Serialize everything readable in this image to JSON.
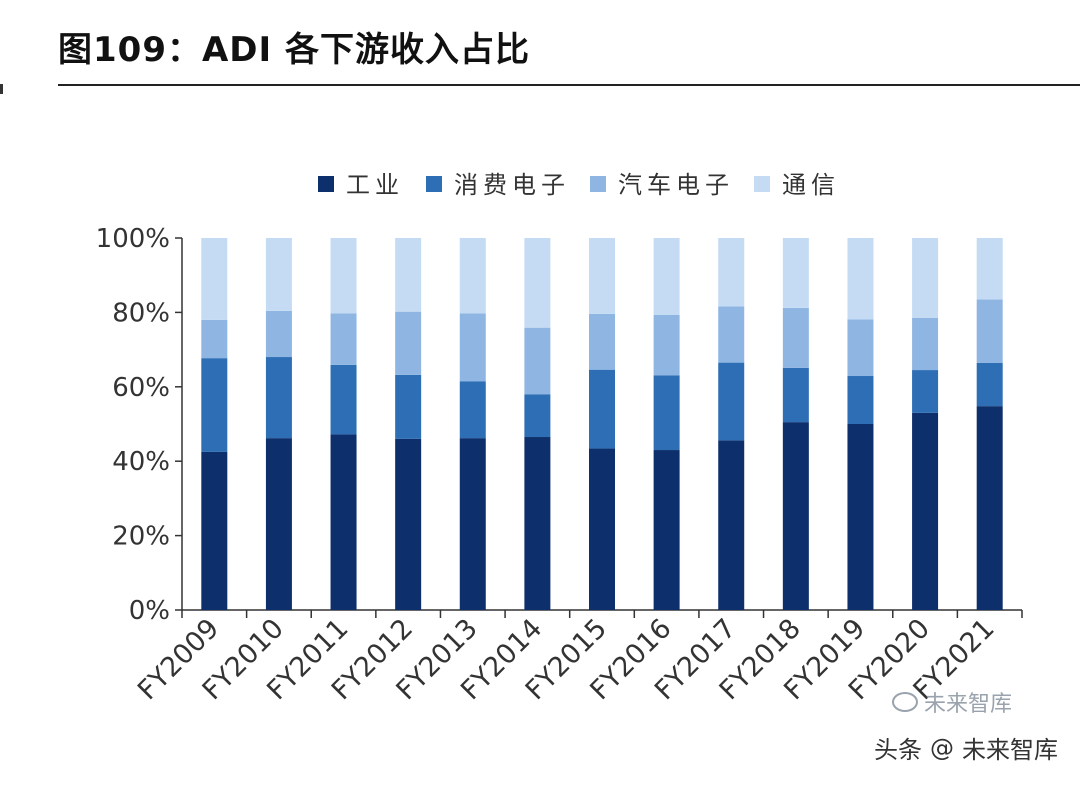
{
  "figure": {
    "title": "图109：ADI 各下游收入占比"
  },
  "watermark": {
    "platform": "头条",
    "at_symbol": "@",
    "account": "未来智库"
  },
  "source_mark": {
    "text": "未来智库"
  },
  "chart_data": {
    "type": "bar",
    "stacked": true,
    "categories": [
      "FY2009",
      "FY2010",
      "FY2011",
      "FY2012",
      "FY2013",
      "FY2014",
      "FY2015",
      "FY2016",
      "FY2017",
      "FY2018",
      "FY2019",
      "FY2020",
      "FY2021"
    ],
    "series": [
      {
        "name": "工业",
        "color": "#0d2f6b",
        "values": [
          42.5,
          46.2,
          47.2,
          46.0,
          46.2,
          46.5,
          43.4,
          43.0,
          45.6,
          50.5,
          50.0,
          53.0,
          54.8
        ]
      },
      {
        "name": "消费电子",
        "color": "#2e6eb5",
        "values": [
          25.2,
          21.8,
          18.7,
          17.2,
          15.3,
          11.5,
          21.2,
          20.1,
          20.9,
          14.6,
          12.9,
          11.5,
          11.6
        ]
      },
      {
        "name": "汽车电子",
        "color": "#8fb6e3",
        "values": [
          10.3,
          12.4,
          13.8,
          17.0,
          18.2,
          17.9,
          15.0,
          16.2,
          15.1,
          16.1,
          15.2,
          14.0,
          17.1
        ]
      },
      {
        "name": "通信",
        "color": "#c5dbf3",
        "values": [
          22.0,
          19.6,
          20.3,
          19.8,
          20.3,
          24.1,
          20.4,
          20.7,
          18.4,
          18.8,
          21.9,
          21.5,
          16.5
        ]
      }
    ],
    "yticks": [
      "0%",
      "20%",
      "40%",
      "60%",
      "80%",
      "100%"
    ],
    "ylim": [
      0,
      100
    ],
    "legend_position": "top-center",
    "grid": false,
    "xlabel": "",
    "ylabel": ""
  }
}
